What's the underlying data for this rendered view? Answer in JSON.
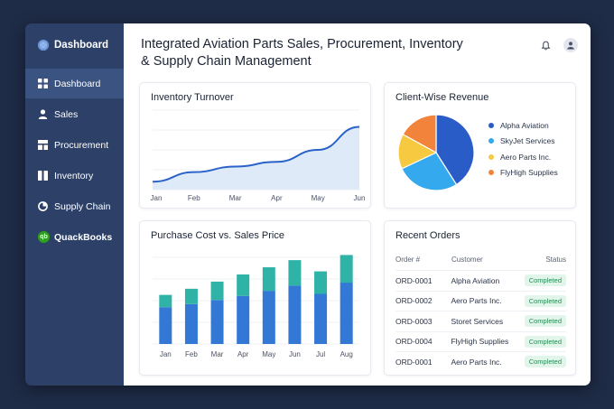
{
  "sidebar": {
    "brand": "Dashboard",
    "items": [
      {
        "label": "Dashboard",
        "icon": "grid-icon",
        "active": true
      },
      {
        "label": "Sales",
        "icon": "user-icon"
      },
      {
        "label": "Procurement",
        "icon": "procurement-icon"
      },
      {
        "label": "Inventory",
        "icon": "inventory-icon"
      },
      {
        "label": "Supply Chain",
        "icon": "supply-chain-icon"
      },
      {
        "label": "QuackBooks",
        "icon": "quickbooks-logo",
        "badge": "qb"
      }
    ]
  },
  "header": {
    "title_line1": "Integrated Aviation Parts Sales, Procurement, Inventory",
    "title_line2": "& Supply Chain Management"
  },
  "cards": {
    "inventory": {
      "title": "Inventory Turnover"
    },
    "revenue": {
      "title": "Client-Wise Revenue"
    },
    "purchase": {
      "title": "Purchase Cost vs. Sales Price"
    },
    "orders": {
      "title": "Recent Orders"
    }
  },
  "chart_data": [
    {
      "type": "area",
      "title": "Inventory Turnover",
      "categories": [
        "Jan",
        "Feb",
        "Mar",
        "Apr",
        "May",
        "Jun"
      ],
      "values": [
        10,
        22,
        29,
        35,
        50,
        79
      ],
      "ylim": [
        0,
        100
      ],
      "color": "#2a62c9",
      "fill": "#dfeaf9"
    },
    {
      "type": "pie",
      "title": "Client-Wise Revenue",
      "labels": [
        "Alpha Aviation",
        "SkyJet Services",
        "Aero Parts Inc.",
        "FlyHigh Supplies"
      ],
      "values": [
        41,
        27,
        15,
        17
      ],
      "colors": [
        "#2a5cc8",
        "#35a9ee",
        "#f7c940",
        "#f2833a"
      ],
      "legend": "right"
    },
    {
      "type": "bar",
      "title": "Purchase Cost vs. Sales Price",
      "categories": [
        "Jan",
        "Feb",
        "Mar",
        "Apr",
        "May",
        "Jun",
        "Jul",
        "Aug"
      ],
      "stacked": true,
      "series": [
        {
          "values": [
            36,
            39,
            43,
            47,
            52,
            57,
            49,
            60
          ],
          "color": "#3478d6"
        },
        {
          "values": [
            12,
            15,
            18,
            21,
            23,
            25,
            22,
            27
          ],
          "color": "#2fb3a6"
        }
      ],
      "ylim": [
        0,
        100
      ],
      "grid": true
    }
  ],
  "orders": {
    "headers": {
      "id": "Order #",
      "customer": "Customer",
      "status": "Status"
    },
    "rows": [
      {
        "id": "ORD-0001",
        "customer": "Alpha Aviation",
        "status": "Completed"
      },
      {
        "id": "ORD-0002",
        "customer": "Aero Parts Inc.",
        "status": "Completed"
      },
      {
        "id": "ORD-0003",
        "customer": "Storet Services",
        "status": "Completed"
      },
      {
        "id": "ORD-0004",
        "customer": "FlyHigh Supplies",
        "status": "Completed"
      },
      {
        "id": "ORD-0001",
        "customer": "Aero Parts Inc.",
        "status": "Completed"
      }
    ]
  },
  "top_icons": [
    "bell-icon",
    "user-avatar-icon"
  ]
}
